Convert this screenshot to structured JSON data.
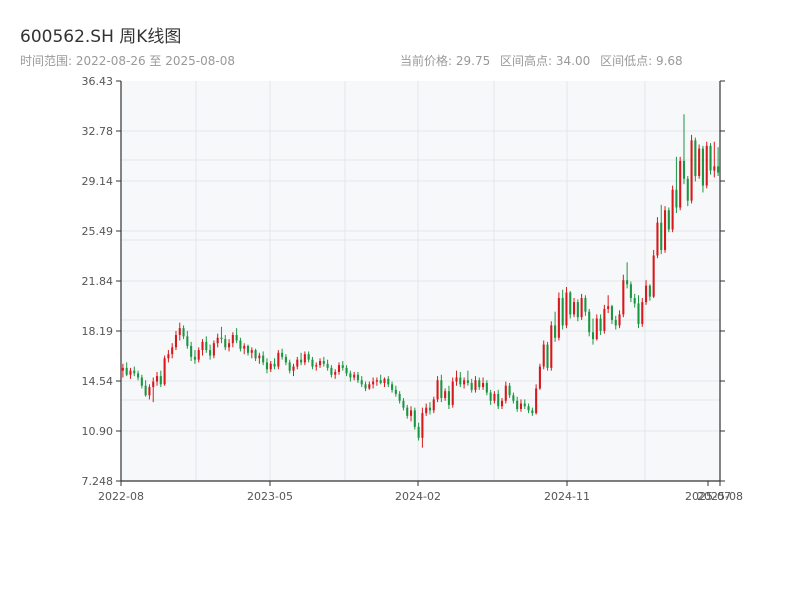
{
  "header": {
    "title": "600562.SH 周K线图",
    "date_range": "时间范围: 2022-08-26 至 2025-08-08",
    "current_price": "当前价格: 29.75",
    "range_high": "区间高点: 34.00",
    "range_low": "区间低点: 9.68"
  },
  "colors": {
    "up": "#d7191c",
    "down": "#1a9641",
    "plot_bg": "#f7f8fa",
    "grid": "#e3e6ea",
    "axis": "#333333"
  },
  "chart_data": {
    "type": "candlestick",
    "y_ticks": [
      "36.43",
      "32.78",
      "29.14",
      "25.49",
      "21.84",
      "18.19",
      "14.54",
      "10.90",
      "7.248"
    ],
    "ylim": [
      7.248,
      36.43
    ],
    "x_ticks": [
      "2022-08",
      "2023-05",
      "2024-02",
      "2024-11",
      "2025-07",
      "2025-08"
    ],
    "candles": [
      [
        15.3,
        15.8,
        14.8,
        15.5
      ],
      [
        15.5,
        15.9,
        14.9,
        15.0
      ],
      [
        15.0,
        15.5,
        14.7,
        15.3
      ],
      [
        15.3,
        15.6,
        14.9,
        15.1
      ],
      [
        15.1,
        15.3,
        14.6,
        14.8
      ],
      [
        14.8,
        15.0,
        14.0,
        14.2
      ],
      [
        14.2,
        14.6,
        13.4,
        13.5
      ],
      [
        13.5,
        14.3,
        13.2,
        14.1
      ],
      [
        14.1,
        14.8,
        13.0,
        14.5
      ],
      [
        14.5,
        15.2,
        14.2,
        14.9
      ],
      [
        14.9,
        15.3,
        14.1,
        14.3
      ],
      [
        14.3,
        16.4,
        14.2,
        16.2
      ],
      [
        16.2,
        16.8,
        15.9,
        16.5
      ],
      [
        16.5,
        17.3,
        16.2,
        17.0
      ],
      [
        17.0,
        18.2,
        16.8,
        17.9
      ],
      [
        17.9,
        18.8,
        17.5,
        18.4
      ],
      [
        18.4,
        18.6,
        17.6,
        17.8
      ],
      [
        17.8,
        18.2,
        16.9,
        17.1
      ],
      [
        17.1,
        17.4,
        16.0,
        16.3
      ],
      [
        16.3,
        16.8,
        15.8,
        16.1
      ],
      [
        16.1,
        17.0,
        15.9,
        16.8
      ],
      [
        16.8,
        17.6,
        16.4,
        17.4
      ],
      [
        17.4,
        17.8,
        16.6,
        16.8
      ],
      [
        16.8,
        17.2,
        16.1,
        16.4
      ],
      [
        16.4,
        17.5,
        16.2,
        17.3
      ],
      [
        17.3,
        18.0,
        17.0,
        17.7
      ],
      [
        17.7,
        18.5,
        17.3,
        17.6
      ],
      [
        17.6,
        17.9,
        16.8,
        17.0
      ],
      [
        17.0,
        17.6,
        16.7,
        17.3
      ],
      [
        17.3,
        18.1,
        17.0,
        17.9
      ],
      [
        17.9,
        18.4,
        17.3,
        17.5
      ],
      [
        17.5,
        17.7,
        16.7,
        16.9
      ],
      [
        16.9,
        17.3,
        16.5,
        17.1
      ],
      [
        17.1,
        17.2,
        16.4,
        16.6
      ],
      [
        16.6,
        17.0,
        16.2,
        16.8
      ],
      [
        16.8,
        16.9,
        16.0,
        16.2
      ],
      [
        16.2,
        16.6,
        15.8,
        16.4
      ],
      [
        16.4,
        16.7,
        15.7,
        15.9
      ],
      [
        15.9,
        16.2,
        15.1,
        15.4
      ],
      [
        15.4,
        16.0,
        15.2,
        15.8
      ],
      [
        15.8,
        16.2,
        15.4,
        15.6
      ],
      [
        15.6,
        16.8,
        15.4,
        16.6
      ],
      [
        16.6,
        16.9,
        16.1,
        16.3
      ],
      [
        16.3,
        16.5,
        15.7,
        15.9
      ],
      [
        15.9,
        16.1,
        15.1,
        15.3
      ],
      [
        15.3,
        15.8,
        14.9,
        15.6
      ],
      [
        15.6,
        16.3,
        15.4,
        16.1
      ],
      [
        16.1,
        16.6,
        15.7,
        15.9
      ],
      [
        15.9,
        16.7,
        15.7,
        16.5
      ],
      [
        16.5,
        16.7,
        15.9,
        16.1
      ],
      [
        16.1,
        16.3,
        15.4,
        15.6
      ],
      [
        15.6,
        15.9,
        15.3,
        15.7
      ],
      [
        15.7,
        16.2,
        15.5,
        16.0
      ],
      [
        16.0,
        16.3,
        15.6,
        15.8
      ],
      [
        15.8,
        16.1,
        15.3,
        15.5
      ],
      [
        15.5,
        15.7,
        14.8,
        15.0
      ],
      [
        15.0,
        15.4,
        14.7,
        15.2
      ],
      [
        15.2,
        15.9,
        15.0,
        15.7
      ],
      [
        15.7,
        16.0,
        15.3,
        15.5
      ],
      [
        15.5,
        15.7,
        14.9,
        15.1
      ],
      [
        15.1,
        15.3,
        14.5,
        14.8
      ],
      [
        14.8,
        15.2,
        14.6,
        15.0
      ],
      [
        15.0,
        15.2,
        14.4,
        14.6
      ],
      [
        14.6,
        14.9,
        14.1,
        14.3
      ],
      [
        14.3,
        14.5,
        13.8,
        14.0
      ],
      [
        14.0,
        14.5,
        13.9,
        14.3
      ],
      [
        14.3,
        14.8,
        14.0,
        14.5
      ],
      [
        14.5,
        14.8,
        14.2,
        14.6
      ],
      [
        14.6,
        15.0,
        14.3,
        14.4
      ],
      [
        14.4,
        14.8,
        14.1,
        14.7
      ],
      [
        14.7,
        14.9,
        14.1,
        14.3
      ],
      [
        14.3,
        14.5,
        13.7,
        13.9
      ],
      [
        13.9,
        14.2,
        13.4,
        13.6
      ],
      [
        13.6,
        13.8,
        12.9,
        13.1
      ],
      [
        13.1,
        13.3,
        12.4,
        12.6
      ],
      [
        12.6,
        12.8,
        11.8,
        12.0
      ],
      [
        12.0,
        12.7,
        11.6,
        12.4
      ],
      [
        12.4,
        12.6,
        11.0,
        11.2
      ],
      [
        11.2,
        11.5,
        10.2,
        10.4
      ],
      [
        10.4,
        12.6,
        9.68,
        12.2
      ],
      [
        12.2,
        12.9,
        12.0,
        12.6
      ],
      [
        12.6,
        13.0,
        12.1,
        12.4
      ],
      [
        12.4,
        13.4,
        12.2,
        13.2
      ],
      [
        13.2,
        14.9,
        13.0,
        14.6
      ],
      [
        14.6,
        15.0,
        13.0,
        13.3
      ],
      [
        13.3,
        14.0,
        13.1,
        13.8
      ],
      [
        13.8,
        14.2,
        12.5,
        12.8
      ],
      [
        12.8,
        14.8,
        12.6,
        14.5
      ],
      [
        14.5,
        15.3,
        14.2,
        14.8
      ],
      [
        14.8,
        15.2,
        14.1,
        14.3
      ],
      [
        14.3,
        14.8,
        14.0,
        14.6
      ],
      [
        14.6,
        15.3,
        14.2,
        14.4
      ],
      [
        14.4,
        14.7,
        13.7,
        13.9
      ],
      [
        13.9,
        14.9,
        13.7,
        14.6
      ],
      [
        14.6,
        14.8,
        13.9,
        14.1
      ],
      [
        14.1,
        14.8,
        13.9,
        14.4
      ],
      [
        14.4,
        14.6,
        13.5,
        13.7
      ],
      [
        13.7,
        13.9,
        12.8,
        13.1
      ],
      [
        13.1,
        13.8,
        12.9,
        13.6
      ],
      [
        13.6,
        13.9,
        12.5,
        12.7
      ],
      [
        12.7,
        13.3,
        12.5,
        13.1
      ],
      [
        13.1,
        14.5,
        12.9,
        14.2
      ],
      [
        14.2,
        14.4,
        13.3,
        13.5
      ],
      [
        13.5,
        13.7,
        12.9,
        13.1
      ],
      [
        13.1,
        13.4,
        12.3,
        12.5
      ],
      [
        12.5,
        13.2,
        12.3,
        12.9
      ],
      [
        12.9,
        13.2,
        12.5,
        12.7
      ],
      [
        12.7,
        12.9,
        12.2,
        12.4
      ],
      [
        12.4,
        12.6,
        12.0,
        12.2
      ],
      [
        12.2,
        14.3,
        12.1,
        14.0
      ],
      [
        14.0,
        15.8,
        13.9,
        15.6
      ],
      [
        15.6,
        17.5,
        15.4,
        17.2
      ],
      [
        17.2,
        17.4,
        15.3,
        15.5
      ],
      [
        15.5,
        18.9,
        15.3,
        18.6
      ],
      [
        18.6,
        19.6,
        17.4,
        17.7
      ],
      [
        17.7,
        21.0,
        17.5,
        20.6
      ],
      [
        20.6,
        21.2,
        18.3,
        18.6
      ],
      [
        18.6,
        21.4,
        18.4,
        21.0
      ],
      [
        21.0,
        21.1,
        19.1,
        19.4
      ],
      [
        19.4,
        20.6,
        19.2,
        20.3
      ],
      [
        20.3,
        20.5,
        18.9,
        19.2
      ],
      [
        19.2,
        20.9,
        19.0,
        20.6
      ],
      [
        20.6,
        20.8,
        19.3,
        19.6
      ],
      [
        19.6,
        19.8,
        17.8,
        18.1
      ],
      [
        18.1,
        19.1,
        17.2,
        17.6
      ],
      [
        17.6,
        19.4,
        17.5,
        19.1
      ],
      [
        19.1,
        19.4,
        17.9,
        18.2
      ],
      [
        18.2,
        20.1,
        18.0,
        19.8
      ],
      [
        19.8,
        20.8,
        19.5,
        20.0
      ],
      [
        20.0,
        20.1,
        18.7,
        19.0
      ],
      [
        19.0,
        19.3,
        18.3,
        18.6
      ],
      [
        18.6,
        19.7,
        18.4,
        19.4
      ],
      [
        19.4,
        22.3,
        19.2,
        21.9
      ],
      [
        21.9,
        23.2,
        21.3,
        21.6
      ],
      [
        21.6,
        21.8,
        20.3,
        20.6
      ],
      [
        20.6,
        20.9,
        19.9,
        20.2
      ],
      [
        20.2,
        20.8,
        18.4,
        18.7
      ],
      [
        18.7,
        20.6,
        18.5,
        20.3
      ],
      [
        20.3,
        21.9,
        20.1,
        21.5
      ],
      [
        21.5,
        21.6,
        20.4,
        20.7
      ],
      [
        20.7,
        24.1,
        20.6,
        23.7
      ],
      [
        23.7,
        26.5,
        23.5,
        26.1
      ],
      [
        26.1,
        27.4,
        23.8,
        24.1
      ],
      [
        24.1,
        27.3,
        23.9,
        27.0
      ],
      [
        27.0,
        27.2,
        25.4,
        25.6
      ],
      [
        25.6,
        28.8,
        25.4,
        28.5
      ],
      [
        28.5,
        30.9,
        26.8,
        27.2
      ],
      [
        27.2,
        30.9,
        27.0,
        30.6
      ],
      [
        30.6,
        34.0,
        28.9,
        29.3
      ],
      [
        29.3,
        29.5,
        27.3,
        27.7
      ],
      [
        27.7,
        32.5,
        27.5,
        32.1
      ],
      [
        32.1,
        32.3,
        29.1,
        29.5
      ],
      [
        29.5,
        31.8,
        29.3,
        31.5
      ],
      [
        31.5,
        31.7,
        28.3,
        28.8
      ],
      [
        28.8,
        32.0,
        28.6,
        31.7
      ],
      [
        31.7,
        31.9,
        29.6,
        29.9
      ],
      [
        29.9,
        32.0,
        29.4,
        30.2
      ],
      [
        30.2,
        31.6,
        29.5,
        29.75
      ]
    ]
  }
}
